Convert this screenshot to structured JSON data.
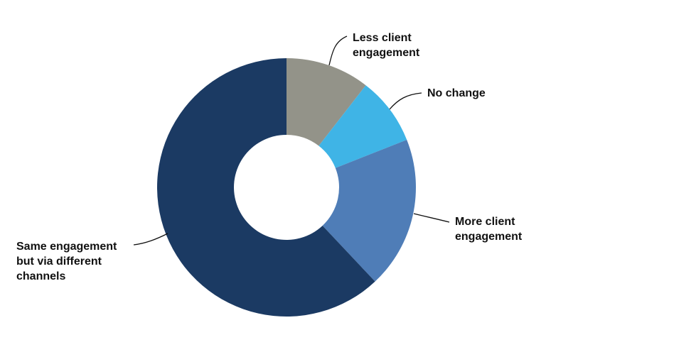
{
  "chart_data": {
    "type": "pie",
    "style": "donut",
    "title": "",
    "start": "top",
    "direction": "clockwise",
    "slices": [
      {
        "label": "Less client engagement",
        "value": 10.5,
        "color": "#939389"
      },
      {
        "label": "No change",
        "value": 8.5,
        "color": "#3fb4e6"
      },
      {
        "label": "More client engagement",
        "value": 19.0,
        "color": "#4f7db7"
      },
      {
        "label": "Same engagement but via different channels",
        "value": 62.0,
        "color": "#1b3a63"
      }
    ]
  }
}
